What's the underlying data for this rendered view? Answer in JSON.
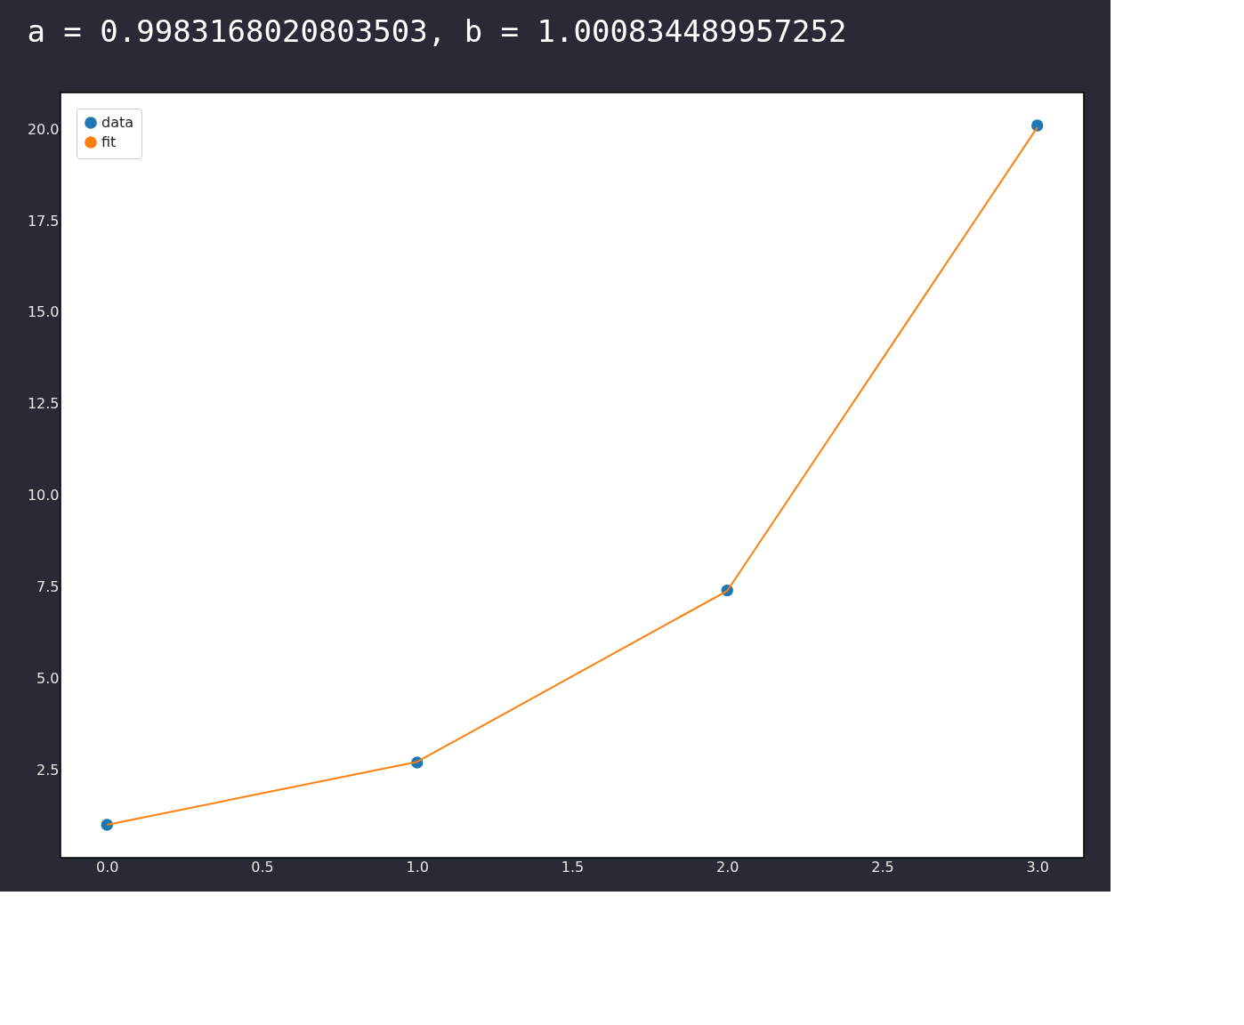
{
  "chart_data": {
    "type": "line",
    "title": "a = 0.9983168020803503, b = 1.000834489957252",
    "series": [
      {
        "name": "data",
        "type": "scatter",
        "marker": "circle",
        "color": "#1f77b4",
        "x": [
          0,
          1,
          2,
          3
        ],
        "values": [
          1.0,
          2.7,
          7.4,
          20.1
        ]
      },
      {
        "name": "fit",
        "marker": "none",
        "line_style": "solid",
        "color": "#ff7f0e",
        "x": [
          0,
          1,
          2,
          3
        ],
        "values": [
          1.0,
          2.72,
          7.39,
          20.05
        ]
      }
    ],
    "xlim": [
      -0.15,
      3.15
    ],
    "ylim": [
      0.1,
      21.0
    ],
    "xticks": [
      {
        "value": 0,
        "label": "0.0"
      },
      {
        "value": 0.5,
        "label": "0.5"
      },
      {
        "value": 1,
        "label": "1.0"
      },
      {
        "value": 1.5,
        "label": "1.5"
      },
      {
        "value": 2,
        "label": "2.0"
      },
      {
        "value": 2.5,
        "label": "2.5"
      },
      {
        "value": 3,
        "label": "3.0"
      }
    ],
    "yticks": [
      {
        "value": 2.5,
        "label": "2.5"
      },
      {
        "value": 5,
        "label": "5.0"
      },
      {
        "value": 7.5,
        "label": "7.5"
      },
      {
        "value": 10,
        "label": "10.0"
      },
      {
        "value": 12.5,
        "label": "12.5"
      },
      {
        "value": 15,
        "label": "15.0"
      },
      {
        "value": 17.5,
        "label": "17.5"
      },
      {
        "value": 20,
        "label": "20.0"
      }
    ],
    "grid": false,
    "legend": "top left"
  }
}
